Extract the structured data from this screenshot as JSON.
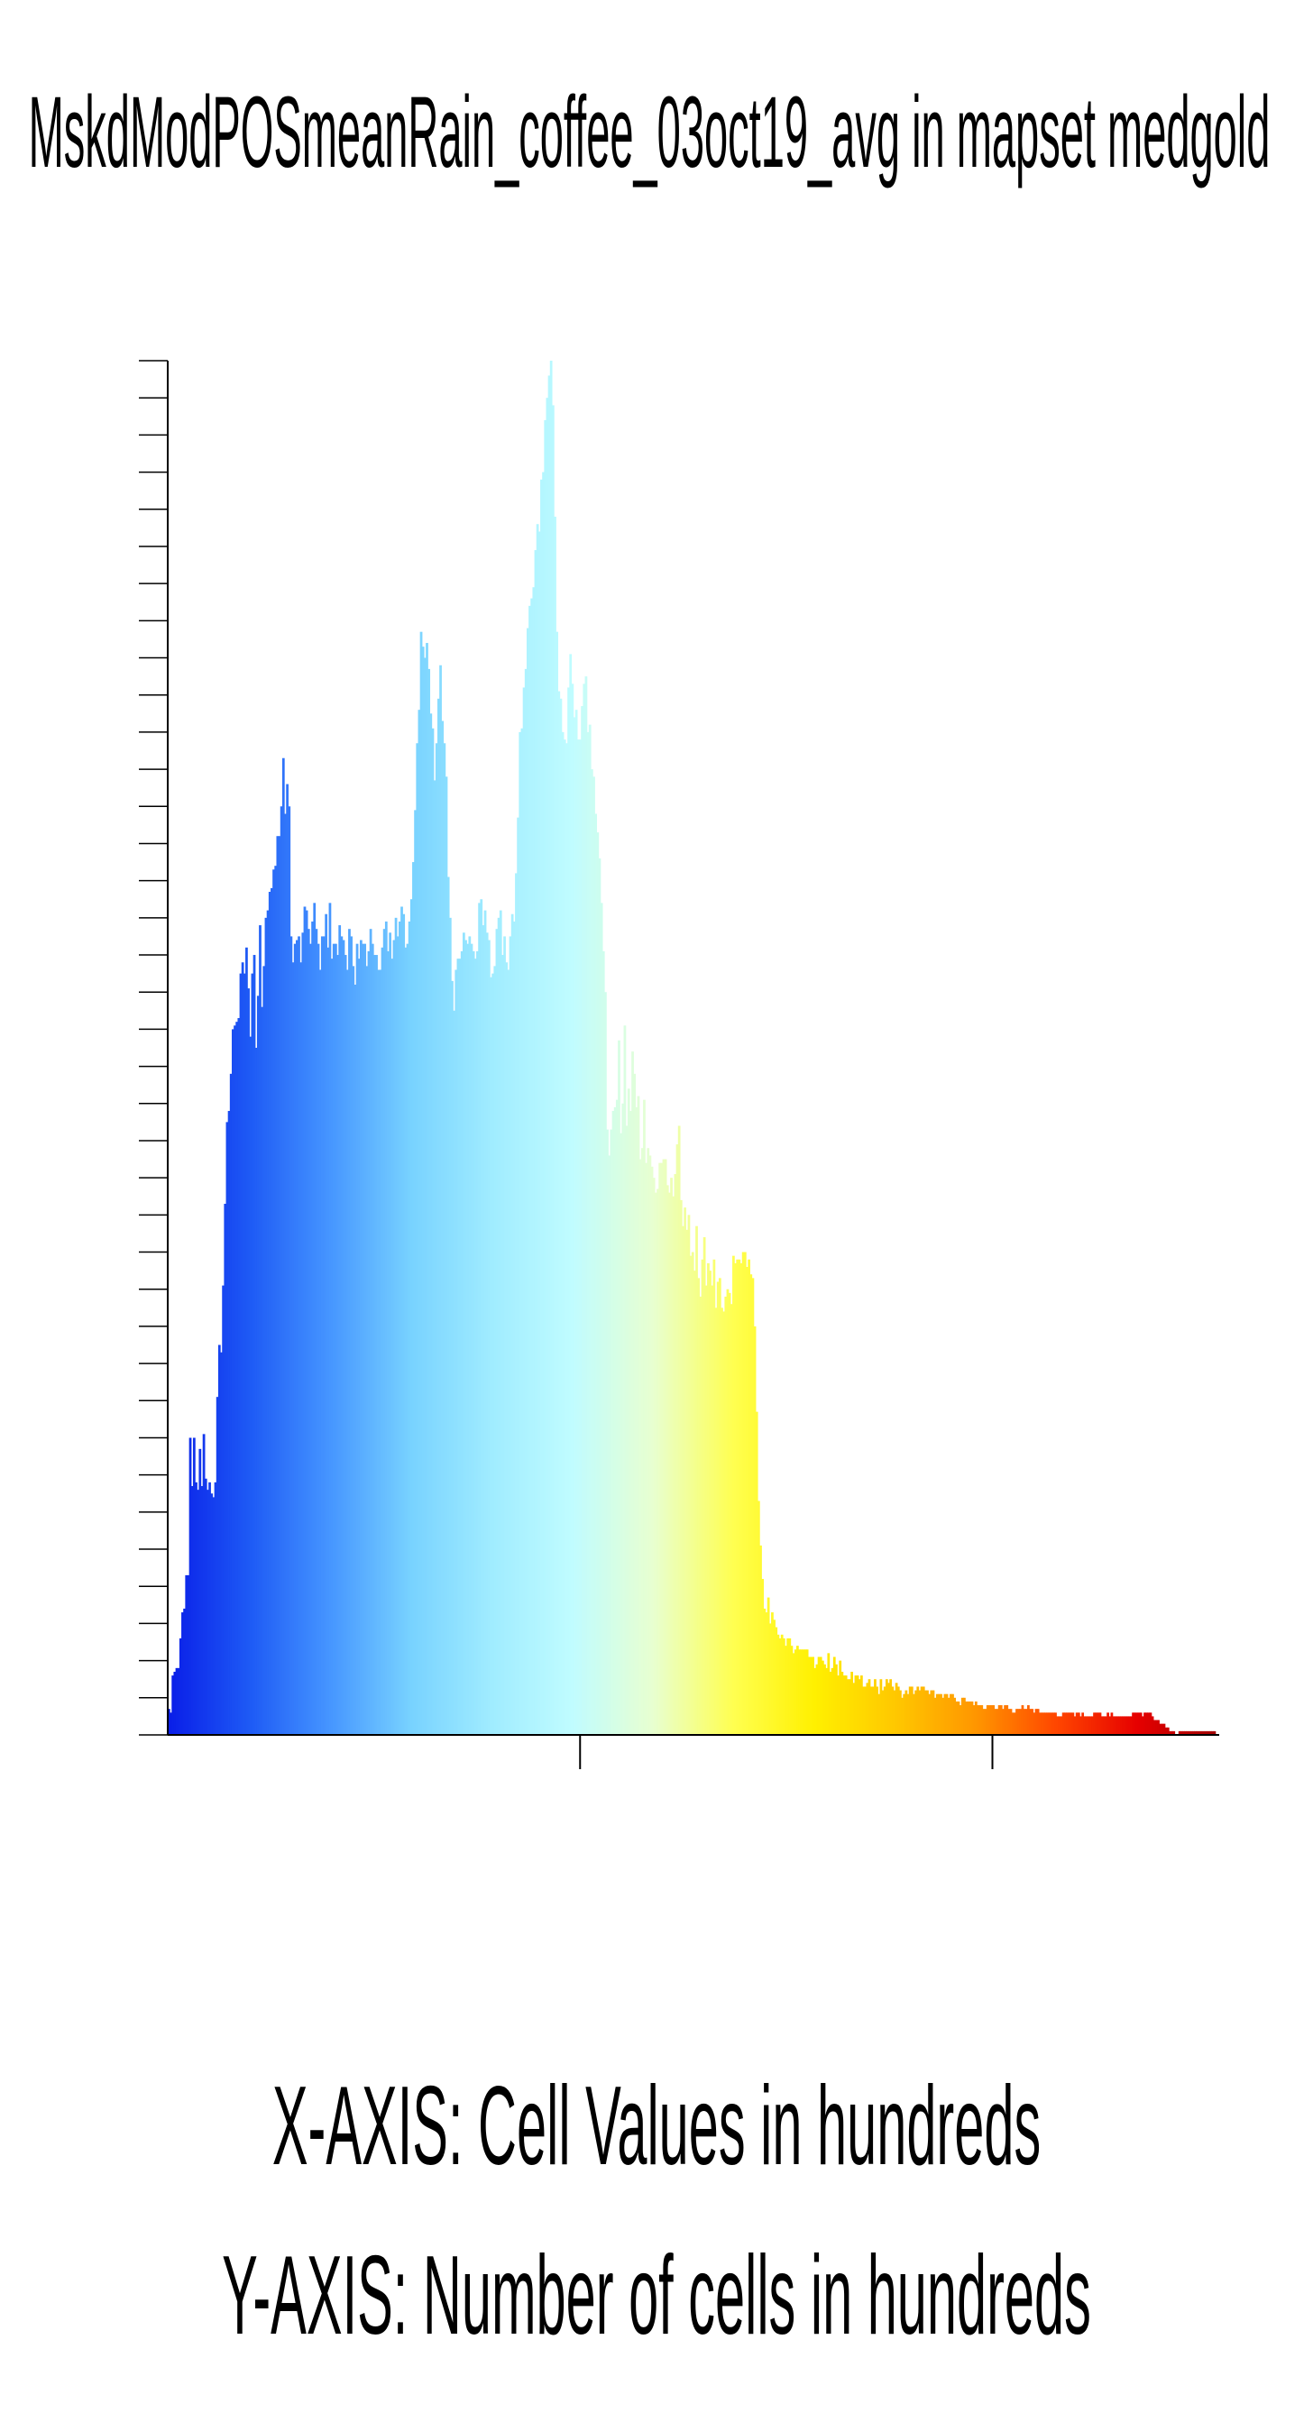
{
  "chart_data": {
    "type": "bar",
    "title": "MskdModPOSmeanRain_coffee_03oct19_avg in mapset medgold",
    "xlabel": "X-AXIS: Cell Values in hundreds",
    "ylabel": "Y-AXIS: Number of cells in hundreds",
    "ylim": [
      0,
      37
    ],
    "y_tick_count": 38,
    "x_major_ticks": 2,
    "grid": false,
    "legend": "none",
    "colormap": [
      "#0a1ee8",
      "#1e5af5",
      "#4696ff",
      "#78d2ff",
      "#a0ecff",
      "#c0fcff",
      "#e8ffd0",
      "#ffff50",
      "#fff000",
      "#ffc800",
      "#ff9600",
      "#ff4600",
      "#e60000",
      "#a00000"
    ],
    "values": [
      0.7,
      0.6,
      1.6,
      1.7,
      1.8,
      1.8,
      2.6,
      3.3,
      3.4,
      4.3,
      4.3,
      8.0,
      6.7,
      8.0,
      6.8,
      6.6,
      7.7,
      6.7,
      8.1,
      6.9,
      6.6,
      6.8,
      6.5,
      6.4,
      6.8,
      9.1,
      10.5,
      10.3,
      12.1,
      14.3,
      16.5,
      16.8,
      17.8,
      19.0,
      19.1,
      19.2,
      19.3,
      20.5,
      20.8,
      20.5,
      21.2,
      20.1,
      18.8,
      20.5,
      21.0,
      18.5,
      19.9,
      21.8,
      19.6,
      20.7,
      22.0,
      22.2,
      22.7,
      22.8,
      23.3,
      23.4,
      24.2,
      24.2,
      25.0,
      26.3,
      24.8,
      25.6,
      25.0,
      21.5,
      20.8,
      21.3,
      21.4,
      21.5,
      20.8,
      21.6,
      22.3,
      22.2,
      21.7,
      21.3,
      21.9,
      22.4,
      21.7,
      21.3,
      20.6,
      21.5,
      21.5,
      22.1,
      21.2,
      22.4,
      20.9,
      21.3,
      21.3,
      21.0,
      21.8,
      21.5,
      21.4,
      21.0,
      20.6,
      21.7,
      21.5,
      20.7,
      20.2,
      21.3,
      20.9,
      21.4,
      21.3,
      21.3,
      20.7,
      21.1,
      21.7,
      21.3,
      21.0,
      21.0,
      20.6,
      20.6,
      21.2,
      21.7,
      21.9,
      21.1,
      21.6,
      20.9,
      21.4,
      22.0,
      21.5,
      21.9,
      22.3,
      22.1,
      21.2,
      21.3,
      21.9,
      22.5,
      23.5,
      24.9,
      26.7,
      27.6,
      29.7,
      29.3,
      29.0,
      29.4,
      28.7,
      27.5,
      27.1,
      25.7,
      26.7,
      27.9,
      28.8,
      27.3,
      26.7,
      25.8,
      23.1,
      22.0,
      20.3,
      19.5,
      20.6,
      20.9,
      20.9,
      21.1,
      21.6,
      21.4,
      21.3,
      21.5,
      21.3,
      21.1,
      20.9,
      21.1,
      22.4,
      22.5,
      21.8,
      22.2,
      21.6,
      21.4,
      20.4,
      20.5,
      20.7,
      21.7,
      22.0,
      22.2,
      21.0,
      21.5,
      20.8,
      20.6,
      21.5,
      22.1,
      21.9,
      23.2,
      24.7,
      27.0,
      27.1,
      28.2,
      28.7,
      29.8,
      30.4,
      30.6,
      30.9,
      31.9,
      32.6,
      32.4,
      33.8,
      34.0,
      35.4,
      36.0,
      36.6,
      37.0,
      35.8,
      32.8,
      29.7,
      28.1,
      27.9,
      27.0,
      26.8,
      26.7,
      28.2,
      29.1,
      28.3,
      27.4,
      27.6,
      26.8,
      26.8,
      27.7,
      28.3,
      28.5,
      27.0,
      27.2,
      26.0,
      25.8,
      24.8,
      24.3,
      23.6,
      22.4,
      21.1,
      20.0,
      16.3,
      15.6,
      16.3,
      16.8,
      16.9,
      17.1,
      18.7,
      16.2,
      17.0,
      19.1,
      16.4,
      17.4,
      16.8,
      18.4,
      17.8,
      16.9,
      17.2,
      15.5,
      15.8,
      17.1,
      15.4,
      15.8,
      15.6,
      15.3,
      15.0,
      14.6,
      14.7,
      15.4,
      15.4,
      15.5,
      15.5,
      14.8,
      14.6,
      15.0,
      14.5,
      15.1,
      15.9,
      16.4,
      14.4,
      13.7,
      14.2,
      13.6,
      14.0,
      12.9,
      13.0,
      12.5,
      13.7,
      12.3,
      11.8,
      12.8,
      13.4,
      12.1,
      12.7,
      12.5,
      12.1,
      12.8,
      11.5,
      12.2,
      12.3,
      11.5,
      11.4,
      11.8,
      12.0,
      11.9,
      11.6,
      12.9,
      12.7,
      12.8,
      12.8,
      12.7,
      13.0,
      13.0,
      12.6,
      12.8,
      12.4,
      12.3,
      11.0,
      8.7,
      6.3,
      5.1,
      4.2,
      3.4,
      3.3,
      3.7,
      3.0,
      3.3,
      3.1,
      2.9,
      2.7,
      2.6,
      2.7,
      2.6,
      2.4,
      2.6,
      2.6,
      2.4,
      2.2,
      2.3,
      2.4,
      2.3,
      2.3,
      2.3,
      2.3,
      2.3,
      2.1,
      2.1,
      2.1,
      1.8,
      1.9,
      2.1,
      2.1,
      2.0,
      1.9,
      1.8,
      2.2,
      1.7,
      1.8,
      2.1,
      1.9,
      1.6,
      2.0,
      1.7,
      1.6,
      1.6,
      1.5,
      1.5,
      1.7,
      1.4,
      1.6,
      1.6,
      1.5,
      1.6,
      1.3,
      1.3,
      1.4,
      1.5,
      1.3,
      1.3,
      1.5,
      1.3,
      1.1,
      1.5,
      1.2,
      1.3,
      1.5,
      1.4,
      1.5,
      1.3,
      1.2,
      1.4,
      1.3,
      1.2,
      1.0,
      1.1,
      1.2,
      1.1,
      1.3,
      1.3,
      1.1,
      1.2,
      1.3,
      1.2,
      1.3,
      1.3,
      1.2,
      1.2,
      1.1,
      1.2,
      1.2,
      1.0,
      1.1,
      1.1,
      1.1,
      1.0,
      1.1,
      1.1,
      1.0,
      1.1,
      1.1,
      1.0,
      0.9,
      0.9,
      0.8,
      1.0,
      1.0,
      0.9,
      0.9,
      0.9,
      0.9,
      0.8,
      0.9,
      0.8,
      0.8,
      0.8,
      0.7,
      0.7,
      0.8,
      0.8,
      0.8,
      0.8,
      0.7,
      0.7,
      0.8,
      0.8,
      0.7,
      0.8,
      0.8,
      0.7,
      0.7,
      0.6,
      0.6,
      0.7,
      0.7,
      0.7,
      0.8,
      0.7,
      0.7,
      0.8,
      0.7,
      0.7,
      0.6,
      0.7,
      0.7,
      0.6,
      0.6,
      0.6,
      0.6,
      0.6,
      0.6,
      0.6,
      0.6,
      0.6,
      0.5,
      0.5,
      0.5,
      0.6,
      0.6,
      0.6,
      0.6,
      0.6,
      0.6,
      0.5,
      0.6,
      0.6,
      0.5,
      0.6,
      0.5,
      0.5,
      0.5,
      0.5,
      0.5,
      0.6,
      0.6,
      0.6,
      0.6,
      0.5,
      0.5,
      0.5,
      0.6,
      0.5,
      0.6,
      0.5,
      0.5,
      0.5,
      0.5,
      0.5,
      0.5,
      0.5,
      0.5,
      0.5,
      0.5,
      0.6,
      0.6,
      0.6,
      0.6,
      0.6,
      0.5,
      0.6,
      0.6,
      0.6,
      0.6,
      0.5,
      0.4,
      0.4,
      0.4,
      0.3,
      0.3,
      0.3,
      0.2,
      0.2,
      0.1,
      0.1,
      0.1,
      0.0,
      0.0,
      0.1,
      0.1,
      0.1,
      0.1,
      0.1,
      0.1,
      0.1,
      0.1,
      0.1,
      0.1,
      0.1,
      0.1,
      0.1,
      0.1,
      0.1,
      0.1,
      0.1,
      0.1,
      0.1,
      0.0,
      0.0
    ]
  }
}
